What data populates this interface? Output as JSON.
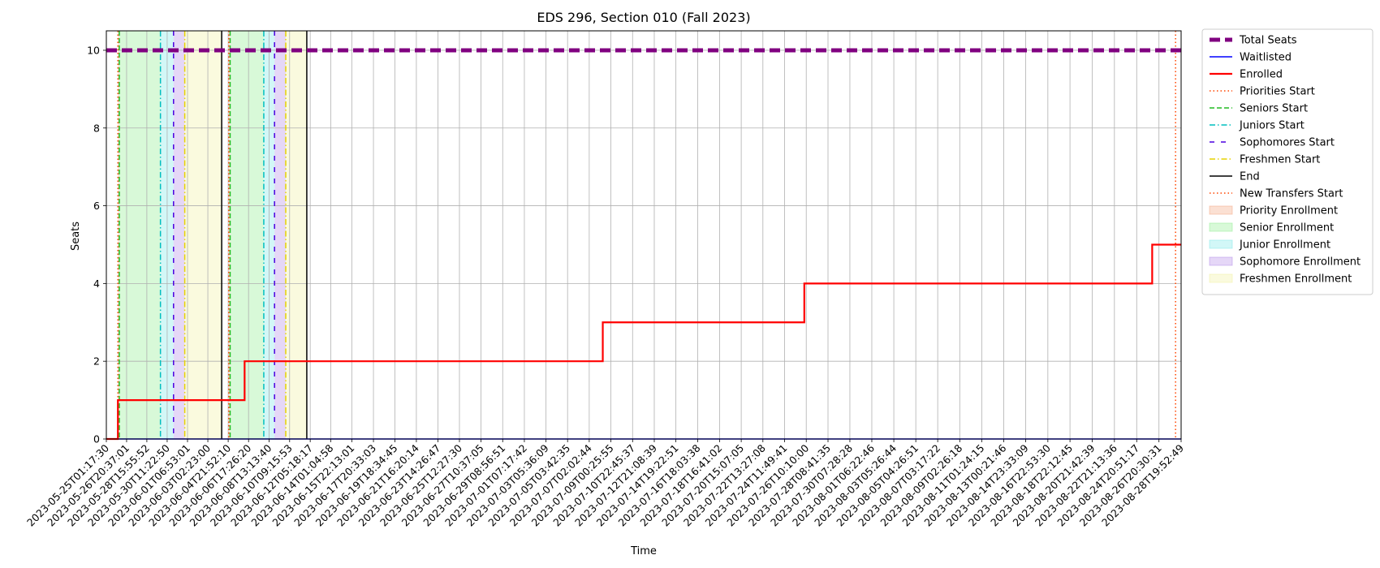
{
  "chart_data": {
    "type": "line",
    "title": "EDS 296, Section 010 (Fall 2023)",
    "xlabel": "Time",
    "ylabel": "Seats",
    "x_range": [
      "2023-05-25T01:17:30",
      "2023-08-28T19:52:49"
    ],
    "ylim": [
      0,
      10.5
    ],
    "y_ticks": [
      0,
      2,
      4,
      6,
      8,
      10
    ],
    "grid": true,
    "legend_position": "outside right",
    "x_ticks": [
      "2023-05-25T01:17:30",
      "2023-05-26T20:37:01",
      "2023-05-28T15:55:52",
      "2023-05-30T11:22:50",
      "2023-06-01T06:53:01",
      "2023-06-03T02:23:00",
      "2023-06-04T21:52:10",
      "2023-06-06T17:26:20",
      "2023-06-08T13:13:40",
      "2023-06-10T09:15:53",
      "2023-06-12T05:18:17",
      "2023-06-14T01:04:58",
      "2023-06-15T22:13:01",
      "2023-06-17T20:33:03",
      "2023-06-19T18:34:45",
      "2023-06-21T16:20:14",
      "2023-06-23T14:26:47",
      "2023-06-25T12:27:30",
      "2023-06-27T10:37:05",
      "2023-06-29T08:56:51",
      "2023-07-01T07:17:42",
      "2023-07-03T05:36:09",
      "2023-07-05T03:42:35",
      "2023-07-07T02:02:44",
      "2023-07-09T00:25:55",
      "2023-07-10T22:45:37",
      "2023-07-12T21:08:39",
      "2023-07-14T19:22:51",
      "2023-07-16T18:03:38",
      "2023-07-18T16:41:02",
      "2023-07-20T15:07:05",
      "2023-07-22T13:27:08",
      "2023-07-24T11:49:41",
      "2023-07-26T10:10:00",
      "2023-07-28T08:41:35",
      "2023-07-30T07:28:28",
      "2023-08-01T06:22:46",
      "2023-08-03T05:26:44",
      "2023-08-05T04:26:51",
      "2023-08-07T03:17:22",
      "2023-08-09T02:26:18",
      "2023-08-11T01:24:15",
      "2023-08-13T00:21:46",
      "2023-08-14T23:33:09",
      "2023-08-16T22:53:30",
      "2023-08-18T22:12:45",
      "2023-08-20T21:42:39",
      "2023-08-22T21:13:36",
      "2023-08-24T20:51:17",
      "2023-08-26T20:30:31",
      "2023-08-28T19:52:49"
    ],
    "series": [
      {
        "name": "Total Seats",
        "color": "#800080",
        "style": "dashed-thick",
        "steps": [
          [
            "2023-05-25T01:17:30",
            10
          ],
          [
            "2023-08-28T19:52:49",
            10
          ]
        ]
      },
      {
        "name": "Waitlisted",
        "color": "#0000ff",
        "style": "solid",
        "steps": [
          [
            "2023-05-25T01:17:30",
            0
          ],
          [
            "2023-08-28T19:52:49",
            0
          ]
        ]
      },
      {
        "name": "Enrolled",
        "color": "#ff0000",
        "style": "solid-thick",
        "steps": [
          [
            "2023-05-25T01:17:30",
            0
          ],
          [
            "2023-05-26T02:00:00",
            1
          ],
          [
            "2023-06-06T09:00:00",
            2
          ],
          [
            "2023-07-08T07:00:00",
            3
          ],
          [
            "2023-07-26T06:00:00",
            4
          ],
          [
            "2023-08-26T06:00:00",
            5
          ],
          [
            "2023-08-28T19:52:49",
            5
          ]
        ]
      }
    ],
    "markers": [
      {
        "name": "Priorities Start",
        "color": "#ff4500",
        "style": "dotted",
        "times": [
          "2023-05-26T02:00:00",
          "2023-06-04T23:00:00"
        ]
      },
      {
        "name": "Seniors Start",
        "color": "#22bb22",
        "style": "dashed",
        "times": [
          "2023-05-26T05:00:00",
          "2023-06-05T02:00:00"
        ]
      },
      {
        "name": "Juniors Start",
        "color": "#00bfbf",
        "style": "dashdot",
        "times": [
          "2023-05-29T21:00:00",
          "2023-06-08T02:00:00"
        ]
      },
      {
        "name": "Sophomores Start",
        "color": "#4b00e0",
        "style": "loosedash",
        "times": [
          "2023-05-31T01:00:00",
          "2023-06-09T01:00:00"
        ]
      },
      {
        "name": "Freshmen Start",
        "color": "#e6d200",
        "style": "dashdot",
        "times": [
          "2023-06-01T01:00:00",
          "2023-06-10T01:00:00"
        ]
      },
      {
        "name": "End",
        "color": "#000000",
        "style": "solid",
        "times": [
          "2023-06-04T08:00:00",
          "2023-06-11T22:00:00"
        ]
      },
      {
        "name": "New Transfers Start",
        "color": "#ff4500",
        "style": "dotted",
        "times": [
          "2023-08-28T08:00:00"
        ]
      }
    ],
    "periods": [
      {
        "name": "Priority Enrollment",
        "color": "#f4a582",
        "ranges": [
          [
            "2023-05-26T02:00:00",
            "2023-05-26T05:00:00"
          ],
          [
            "2023-06-04T23:00:00",
            "2023-06-05T02:00:00"
          ]
        ]
      },
      {
        "name": "Senior Enrollment",
        "color": "#90ee90",
        "ranges": [
          [
            "2023-05-26T05:00:00",
            "2023-05-29T21:00:00"
          ],
          [
            "2023-06-05T02:00:00",
            "2023-06-08T02:00:00"
          ]
        ]
      },
      {
        "name": "Junior Enrollment",
        "color": "#7fe8e8",
        "ranges": [
          [
            "2023-05-29T21:00:00",
            "2023-05-31T01:00:00"
          ],
          [
            "2023-06-08T02:00:00",
            "2023-06-09T01:00:00"
          ]
        ]
      },
      {
        "name": "Sophomore Enrollment",
        "color": "#b48ce8",
        "ranges": [
          [
            "2023-05-31T01:00:00",
            "2023-06-01T01:00:00"
          ],
          [
            "2023-06-09T01:00:00",
            "2023-06-10T01:00:00"
          ]
        ]
      },
      {
        "name": "Freshmen Enrollment",
        "color": "#f0f0a0",
        "ranges": [
          [
            "2023-06-01T01:00:00",
            "2023-06-04T08:00:00"
          ],
          [
            "2023-06-10T01:00:00",
            "2023-06-11T22:00:00"
          ]
        ]
      }
    ],
    "legend": [
      {
        "label": "Total Seats",
        "kind": "line",
        "color": "#800080",
        "style": "dashed-thick"
      },
      {
        "label": "Waitlisted",
        "kind": "line",
        "color": "#0000ff",
        "style": "solid"
      },
      {
        "label": "Enrolled",
        "kind": "line",
        "color": "#ff0000",
        "style": "solid-thick"
      },
      {
        "label": "Priorities Start",
        "kind": "line",
        "color": "#ff4500",
        "style": "dotted"
      },
      {
        "label": "Seniors Start",
        "kind": "line",
        "color": "#22bb22",
        "style": "dashed"
      },
      {
        "label": "Juniors Start",
        "kind": "line",
        "color": "#00bfbf",
        "style": "dashdot"
      },
      {
        "label": "Sophomores Start",
        "kind": "line",
        "color": "#4b00e0",
        "style": "loosedash"
      },
      {
        "label": "Freshmen Start",
        "kind": "line",
        "color": "#e6d200",
        "style": "dashdot"
      },
      {
        "label": "End",
        "kind": "line",
        "color": "#000000",
        "style": "solid"
      },
      {
        "label": "New Transfers Start",
        "kind": "line",
        "color": "#ff4500",
        "style": "dotted"
      },
      {
        "label": "Priority Enrollment",
        "kind": "patch",
        "color": "#f4a582"
      },
      {
        "label": "Senior Enrollment",
        "kind": "patch",
        "color": "#90ee90"
      },
      {
        "label": "Junior Enrollment",
        "kind": "patch",
        "color": "#7fe8e8"
      },
      {
        "label": "Sophomore Enrollment",
        "kind": "patch",
        "color": "#b48ce8"
      },
      {
        "label": "Freshmen Enrollment",
        "kind": "patch",
        "color": "#f0f0a0"
      }
    ]
  }
}
